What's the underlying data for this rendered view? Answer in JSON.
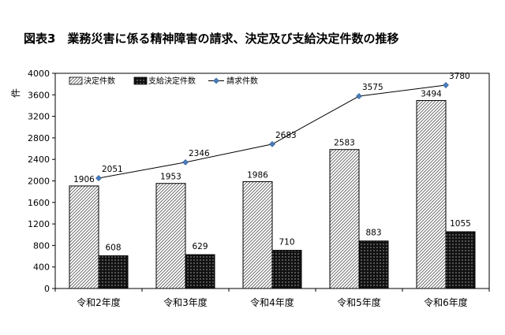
{
  "title": "図表3　業務災害に係る精神障害の請求、決定及び支給決定件数の推移",
  "chart_data": {
    "type": "bar",
    "title": "図表3　業務災害に係る精神障害の請求、決定及び支給決定件数の推移",
    "ylabel": "件",
    "categories": [
      "令和2年度",
      "令和3年度",
      "令和4年度",
      "令和5年度",
      "令和6年度"
    ],
    "yticks": [
      0,
      400,
      800,
      1200,
      1600,
      2000,
      2400,
      2800,
      3200,
      3600,
      4000
    ],
    "ylim": [
      0,
      4000
    ],
    "grid": false,
    "legend_position": "top-left",
    "series": [
      {
        "name": "決定件数",
        "type": "bar",
        "pattern": "diagonal-hatch",
        "values": [
          1906,
          1953,
          1986,
          2583,
          3494
        ]
      },
      {
        "name": "支給決定件数",
        "type": "bar",
        "pattern": "dark-dotted",
        "values": [
          608,
          629,
          710,
          883,
          1055
        ]
      },
      {
        "name": "請求件数",
        "type": "line",
        "color": "#4a7ebb",
        "values": [
          2051,
          2346,
          2683,
          3575,
          3780
        ]
      }
    ]
  }
}
